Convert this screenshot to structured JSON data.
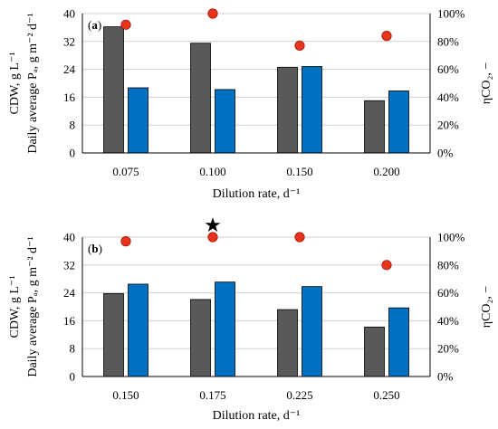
{
  "chart_data": [
    {
      "type": "bar",
      "panel_label_prefix": "(",
      "panel_letter": "a",
      "panel_label_suffix": ")",
      "categories": [
        "0.075",
        "0.100",
        "0.150",
        "0.200"
      ],
      "series": [
        {
          "values": [
            36.2,
            31.5,
            24.6,
            15.0
          ],
          "color": "#595959"
        },
        {
          "values": [
            18.7,
            18.2,
            24.8,
            17.8
          ],
          "color": "#0070c0"
        }
      ],
      "secondary_series": {
        "type": "scatter",
        "values": [
          92,
          100,
          77,
          84
        ],
        "color": "#e8341c"
      },
      "xlabel": "Dilution rate, d⁻¹",
      "ylabel_lines": [
        "CDW, g L⁻¹",
        "Daily average Pₐ, g m⁻² d⁻¹"
      ],
      "y2label": "ηCO₂, −",
      "ylim": [
        0,
        40
      ],
      "yticks": [
        "0",
        "8",
        "16",
        "24",
        "32",
        "40"
      ],
      "y2lim": [
        0,
        100
      ],
      "y2ticks": [
        "0%",
        "20%",
        "40%",
        "60%",
        "80%",
        "100%"
      ],
      "grid": true,
      "annotation": null
    },
    {
      "type": "bar",
      "panel_label_prefix": "(",
      "panel_letter": "b",
      "panel_label_suffix": ")",
      "categories": [
        "0.150",
        "0.175",
        "0.225",
        "0.250"
      ],
      "series": [
        {
          "values": [
            23.8,
            22.1,
            19.2,
            14.2
          ],
          "color": "#595959"
        },
        {
          "values": [
            26.5,
            27.1,
            25.8,
            19.7
          ],
          "color": "#0070c0"
        }
      ],
      "secondary_series": {
        "type": "scatter",
        "values": [
          97,
          100,
          100,
          80
        ],
        "color": "#e8341c"
      },
      "xlabel": "Dilution rate, d⁻¹",
      "ylabel_lines": [
        "CDW, g L⁻¹",
        "Daily average Pₐ, g m⁻² d⁻¹"
      ],
      "y2label": "ηCO₂, −",
      "ylim": [
        0,
        40
      ],
      "yticks": [
        "0",
        "8",
        "16",
        "24",
        "32",
        "40"
      ],
      "y2lim": [
        0,
        100
      ],
      "y2ticks": [
        "0%",
        "20%",
        "40%",
        "60%",
        "80%",
        "100%"
      ],
      "grid": true,
      "annotation": {
        "glyph": "★",
        "category_index": 1
      }
    }
  ]
}
